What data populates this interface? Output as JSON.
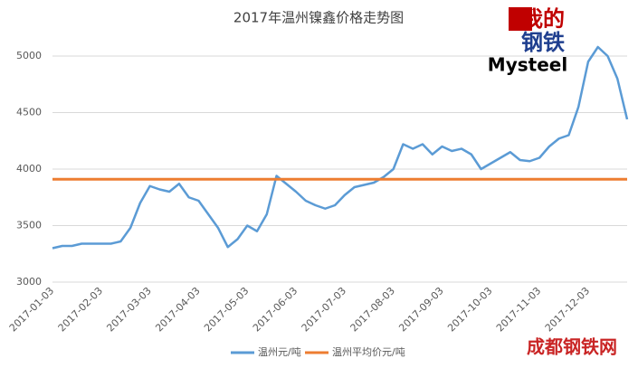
{
  "chart_data": {
    "type": "line",
    "title": "2017年温州镍鑫价格走势图",
    "logo_top": "我的",
    "logo_bottom": "钢铁",
    "brand": "Mysteel",
    "watermark": "成都钢铁网",
    "categories": [
      "2017-01-03",
      null,
      null,
      null,
      null,
      "2017-02-03",
      null,
      null,
      null,
      null,
      "2017-03-03",
      null,
      null,
      null,
      null,
      "2017-04-03",
      null,
      null,
      null,
      null,
      "2017-05-03",
      null,
      null,
      null,
      null,
      "2017-06-03",
      null,
      null,
      null,
      null,
      "2017-07-03",
      null,
      null,
      null,
      null,
      "2017-08-03",
      null,
      null,
      null,
      null,
      "2017-09-03",
      null,
      null,
      null,
      null,
      "2017-10-03",
      null,
      null,
      null,
      null,
      "2017-11-03",
      null,
      null,
      null,
      null,
      "2017-12-03",
      null,
      null,
      null,
      null
    ],
    "series": [
      {
        "name": "温州元/吨",
        "color": "#5b9bd5",
        "values": [
          3300,
          3320,
          3320,
          3340,
          3340,
          3340,
          3340,
          3360,
          3480,
          3700,
          3850,
          3820,
          3800,
          3870,
          3750,
          3720,
          3600,
          3480,
          3310,
          3380,
          3500,
          3450,
          3600,
          3940,
          3870,
          3800,
          3720,
          3680,
          3650,
          3680,
          3770,
          3840,
          3860,
          3880,
          3930,
          4000,
          4220,
          4180,
          4220,
          4130,
          4200,
          4160,
          4180,
          4130,
          4000,
          4050,
          4100,
          4150,
          4080,
          4070,
          4100,
          4200,
          4270,
          4300,
          4550,
          4950,
          5080,
          5000,
          4800,
          4440
        ]
      },
      {
        "name": "温州平均价元/吨",
        "color": "#ed7d31",
        "values": [
          3910,
          3910,
          3910,
          3910,
          3910,
          3910,
          3910,
          3910,
          3910,
          3910,
          3910,
          3910,
          3910,
          3910,
          3910,
          3910,
          3910,
          3910,
          3910,
          3910,
          3910,
          3910,
          3910,
          3910,
          3910,
          3910,
          3910,
          3910,
          3910,
          3910,
          3910,
          3910,
          3910,
          3910,
          3910,
          3910,
          3910,
          3910,
          3910,
          3910,
          3910,
          3910,
          3910,
          3910,
          3910,
          3910,
          3910,
          3910,
          3910,
          3910,
          3910,
          3910,
          3910,
          3910,
          3910,
          3910,
          3910,
          3910,
          3910,
          3910
        ]
      }
    ],
    "ylim": [
      3000,
      5000
    ],
    "yticks": [
      3000,
      3500,
      4000,
      4500,
      5000
    ],
    "grid": true
  }
}
